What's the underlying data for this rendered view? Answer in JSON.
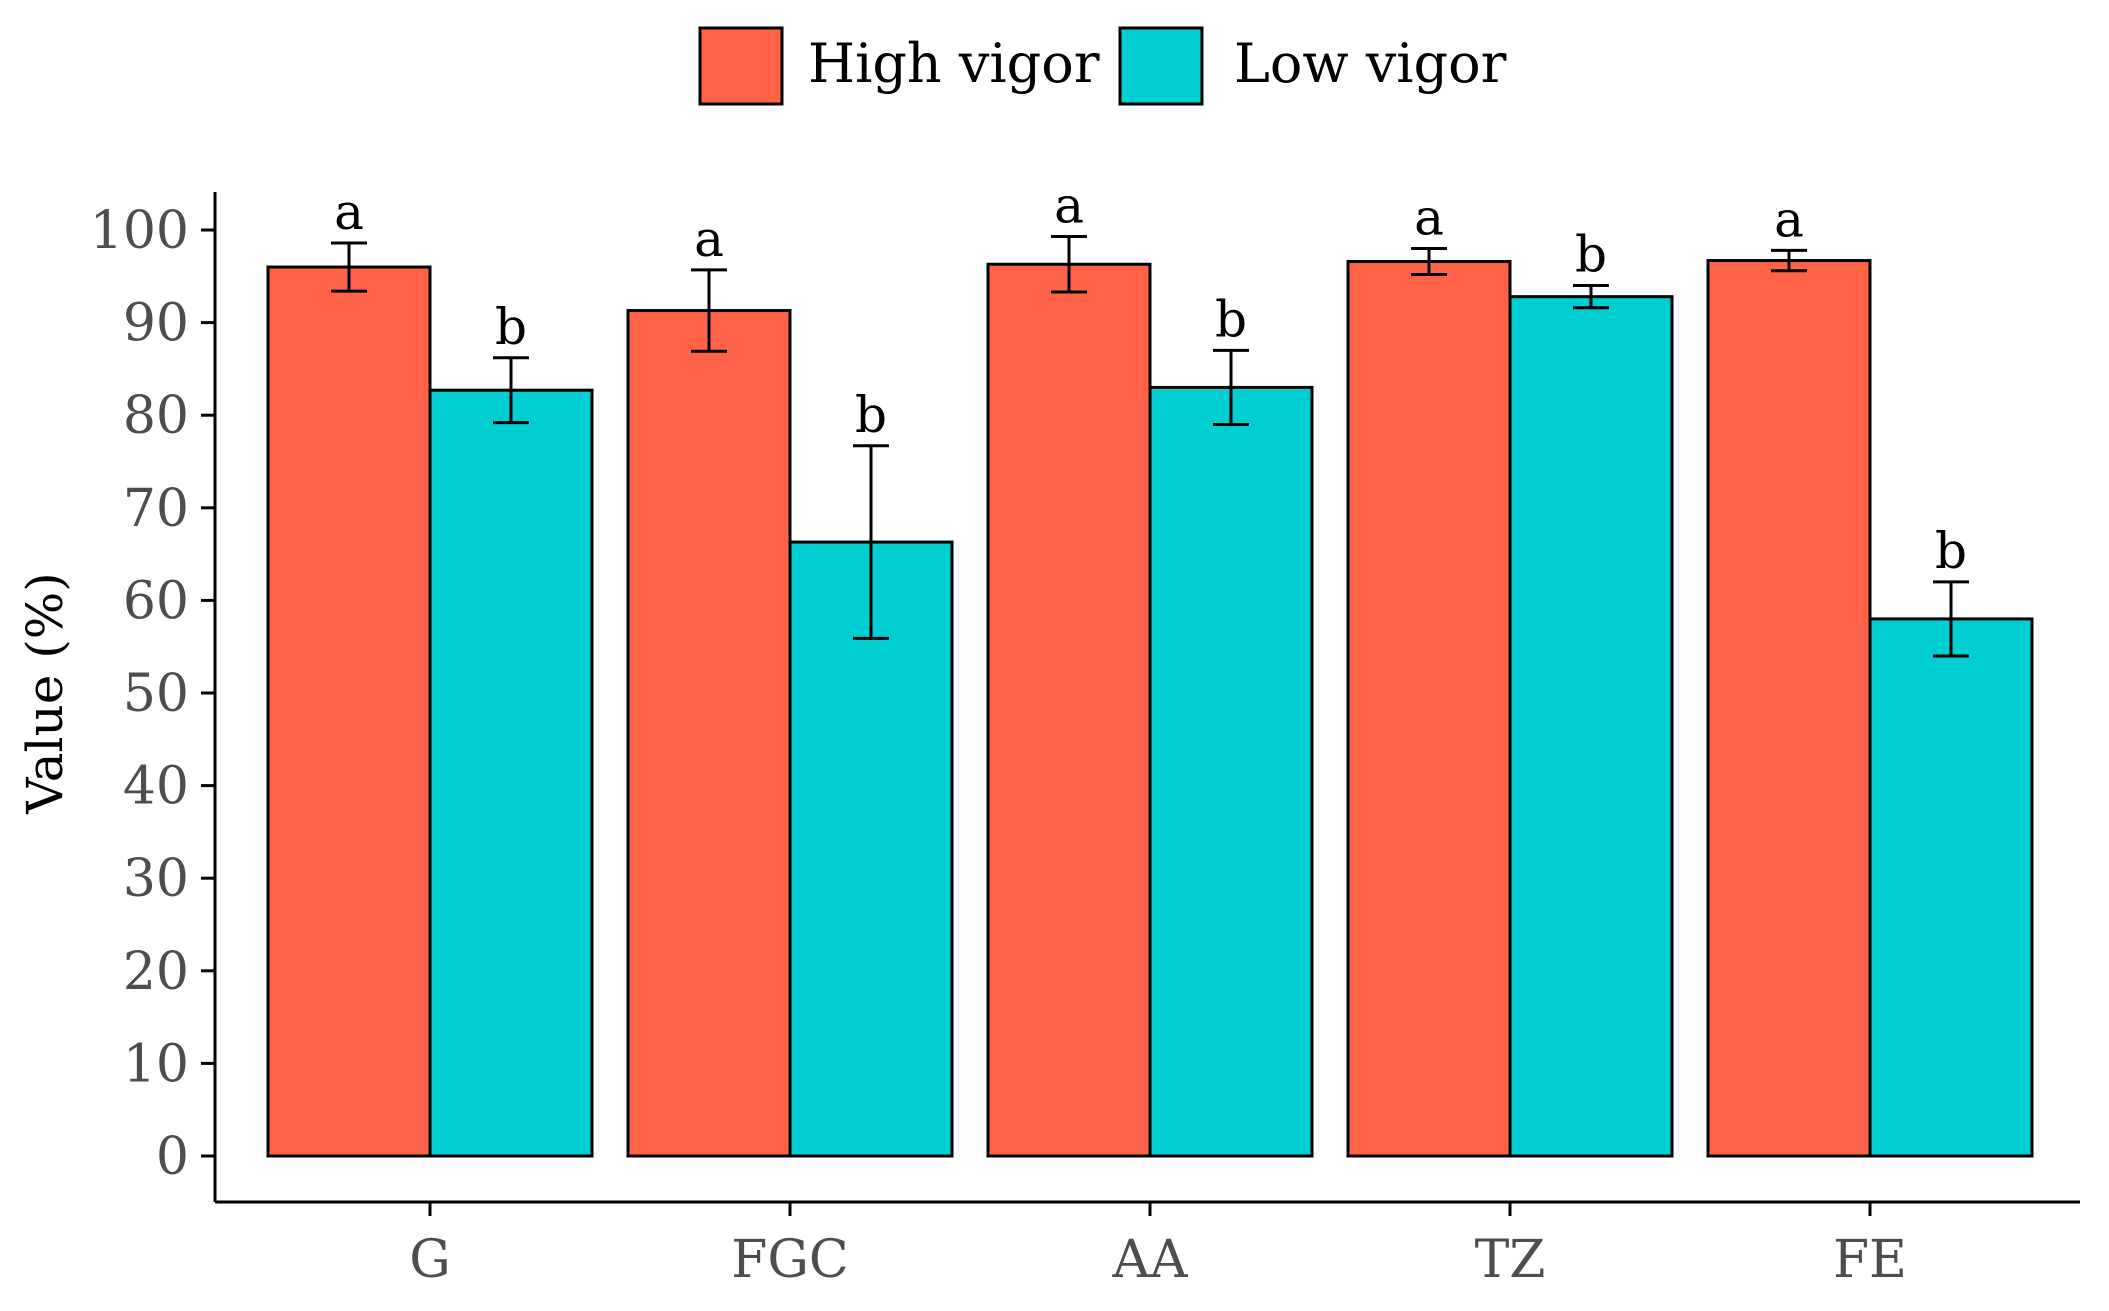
{
  "chart_data": {
    "type": "bar",
    "title": "",
    "xlabel": "",
    "ylabel": "Value (%)",
    "ylim": [
      0,
      100
    ],
    "yticks": [
      0,
      10,
      20,
      30,
      40,
      50,
      60,
      70,
      80,
      90,
      100
    ],
    "ytick_labels": [
      "0",
      "10",
      "20",
      "30",
      "40",
      "50",
      "60",
      "70",
      "80",
      "90",
      "100"
    ],
    "categories": [
      "G",
      "FGC",
      "AA",
      "TZ",
      "FE"
    ],
    "series": [
      {
        "name": "High vigor",
        "color": "#ff6347",
        "values": [
          96.0,
          91.3,
          96.3,
          96.6,
          96.7
        ],
        "error": [
          2.6,
          4.4,
          3.0,
          1.4,
          1.1
        ],
        "labels": [
          "a",
          "a",
          "a",
          "a",
          "a"
        ]
      },
      {
        "name": "Low vigor",
        "color": "#00ced1",
        "values": [
          82.7,
          66.3,
          83.0,
          92.8,
          58.0
        ],
        "error": [
          3.5,
          10.4,
          4.0,
          1.2,
          4.0
        ],
        "labels": [
          "b",
          "b",
          "b",
          "b",
          "b"
        ]
      }
    ],
    "grid": false,
    "legend_position": "top"
  }
}
